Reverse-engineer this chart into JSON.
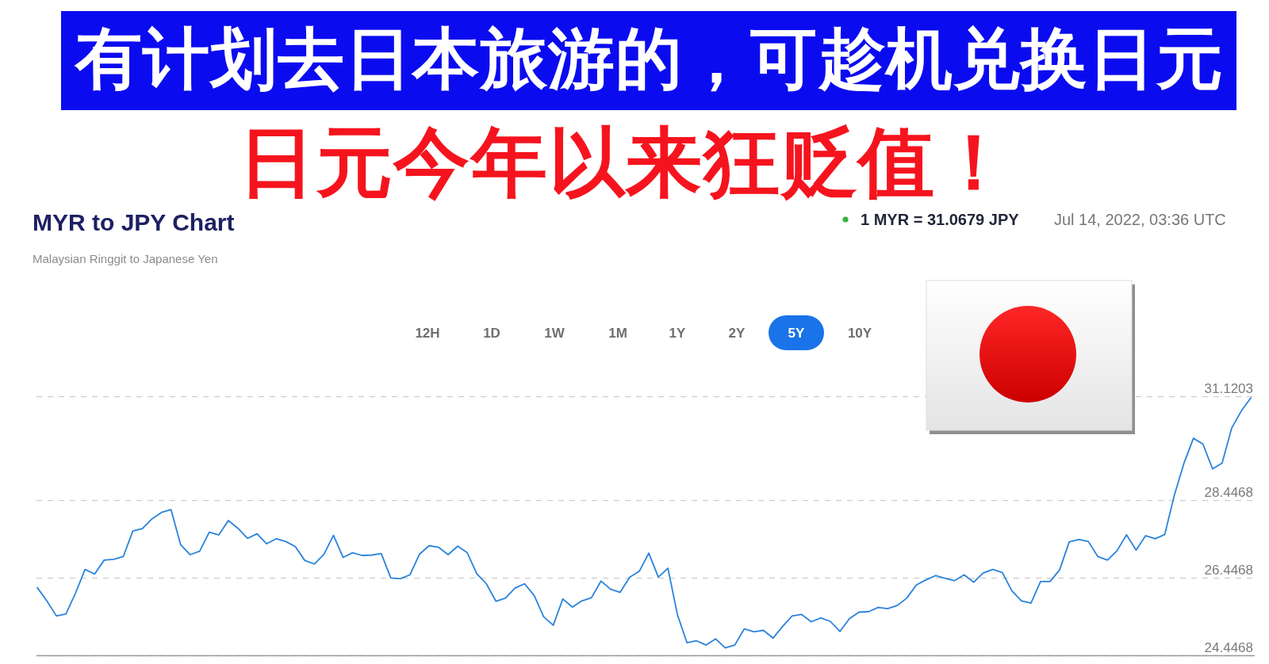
{
  "chart_data": {
    "type": "line",
    "title": "MYR to JPY Chart",
    "subtitle": "Malaysian Ringgit to Japanese Yen",
    "annotations": [
      "有计划去日本旅游的，可趁机兑换日元",
      "日元今年以来狂贬值！",
      "1 MYR = 31.0679 JPY",
      "Jul 14, 2022, 03:36 UTC",
      "12H",
      "1D",
      "1W",
      "1M",
      "1Y",
      "2Y",
      "5Y",
      "10Y"
    ],
    "categories": [
      null,
      null,
      null,
      null,
      null,
      null,
      null,
      null,
      null,
      null,
      null,
      null,
      null,
      null,
      null,
      null,
      null,
      null,
      null,
      null,
      null,
      null,
      null,
      null,
      null,
      null,
      null,
      null,
      null,
      null,
      null,
      null,
      null,
      null,
      null,
      null,
      null,
      null,
      null,
      null,
      null,
      null,
      null,
      null,
      null,
      null,
      null,
      null,
      null,
      null,
      null,
      null,
      null,
      null,
      null,
      null,
      null,
      null,
      null,
      null,
      null,
      null,
      null,
      null,
      null,
      null,
      null,
      null,
      null,
      null,
      null,
      null,
      null,
      null,
      null,
      null,
      null,
      null,
      null,
      null,
      null,
      null,
      null,
      null,
      null,
      null,
      null,
      null,
      null,
      null,
      null,
      null,
      null,
      null,
      null,
      null,
      null,
      null,
      null,
      null,
      null,
      null,
      null,
      null,
      null,
      null,
      null,
      null,
      null,
      null,
      null,
      null,
      null,
      null,
      null,
      null,
      null,
      null,
      null,
      null,
      null,
      null,
      null,
      null,
      null,
      null,
      null,
      null
    ],
    "values": [
      26.2,
      25.86,
      25.47,
      25.52,
      26.06,
      26.67,
      26.55,
      26.91,
      26.93,
      27.0,
      27.66,
      27.72,
      27.97,
      28.14,
      28.21,
      27.31,
      27.05,
      27.14,
      27.63,
      27.56,
      27.93,
      27.73,
      27.47,
      27.59,
      27.33,
      27.46,
      27.39,
      27.26,
      26.9,
      26.81,
      27.06,
      27.55,
      26.98,
      27.1,
      27.03,
      27.04,
      27.08,
      26.45,
      26.43,
      26.53,
      27.06,
      27.28,
      27.24,
      27.05,
      27.27,
      27.1,
      26.56,
      26.3,
      25.85,
      25.93,
      26.19,
      26.3,
      26.0,
      25.45,
      25.23,
      25.91,
      25.7,
      25.86,
      25.94,
      26.37,
      26.16,
      26.08,
      26.47,
      26.62,
      27.09,
      26.47,
      26.7,
      25.5,
      24.78,
      24.83,
      24.72,
      24.88,
      24.65,
      24.72,
      25.14,
      25.06,
      25.1,
      24.9,
      25.2,
      25.47,
      25.51,
      25.32,
      25.42,
      25.33,
      25.07,
      25.4,
      25.57,
      25.58,
      25.69,
      25.66,
      25.74,
      25.93,
      26.27,
      26.4,
      26.51,
      26.44,
      26.38,
      26.53,
      26.34,
      26.58,
      26.67,
      26.59,
      26.12,
      25.86,
      25.8,
      26.36,
      26.36,
      26.66,
      27.38,
      27.44,
      27.39,
      27.0,
      26.91,
      27.15,
      27.56,
      27.17,
      27.54,
      27.46,
      27.57,
      28.58,
      29.4,
      30.05,
      29.9,
      29.26,
      29.41,
      30.31,
      30.75,
      31.09
    ],
    "color": "#2b83dc",
    "ylim": [
      24.4468,
      31.1203
    ],
    "yticks": [
      24.4468,
      26.4468,
      28.4468,
      31.1203
    ],
    "grid": "y",
    "tick_labels": "y"
  }
}
